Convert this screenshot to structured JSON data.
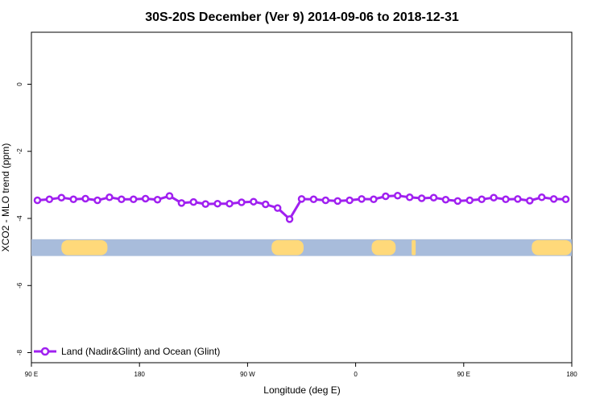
{
  "chart_data": {
    "type": "line",
    "title": "30S-20S December (Ver 9)   2014-09-06 to 2018-12-31",
    "xlabel": "Longitude (deg E)",
    "ylabel": "XCO2 - MLO trend (ppm)",
    "xlim": [
      -90,
      180
    ],
    "ylim": [
      -8.3,
      1.55
    ],
    "x_ticks": [
      {
        "value": -90,
        "label": "90 E"
      },
      {
        "value": -36,
        "label": "180"
      },
      {
        "value": 18,
        "label": "90 W"
      },
      {
        "value": 72,
        "label": "0"
      },
      {
        "value": 126,
        "label": "90 E"
      },
      {
        "value": 180,
        "label": "180"
      }
    ],
    "y_ticks": [
      {
        "value": 0,
        "label": "0"
      },
      {
        "value": -2,
        "label": "-2"
      },
      {
        "value": -4,
        "label": "-4"
      },
      {
        "value": -6,
        "label": "-6"
      },
      {
        "value": -8,
        "label": "-8"
      }
    ],
    "series": [
      {
        "name": "Land (Nadir&Glint) and Ocean (Glint)",
        "color": "#a020f0",
        "marker": "open-circle",
        "x": [
          -87,
          -81,
          -75,
          -69,
          -63,
          -57,
          -51,
          -45,
          -39,
          -33,
          -27,
          -21,
          -15,
          -9,
          -3,
          3,
          9,
          15,
          21,
          27,
          33,
          39,
          45,
          51,
          57,
          63,
          69,
          75,
          81,
          87,
          93,
          99,
          105,
          111,
          117,
          123,
          129,
          135,
          141,
          147,
          153,
          159,
          165,
          171,
          177
        ],
        "y": [
          -3.46,
          -3.43,
          -3.38,
          -3.43,
          -3.41,
          -3.46,
          -3.37,
          -3.43,
          -3.43,
          -3.41,
          -3.44,
          -3.33,
          -3.54,
          -3.51,
          -3.57,
          -3.56,
          -3.56,
          -3.52,
          -3.5,
          -3.58,
          -3.69,
          -4.02,
          -3.42,
          -3.43,
          -3.46,
          -3.48,
          -3.46,
          -3.42,
          -3.43,
          -3.34,
          -3.32,
          -3.37,
          -3.4,
          -3.38,
          -3.44,
          -3.48,
          -3.46,
          -3.43,
          -3.38,
          -3.43,
          -3.42,
          -3.47,
          -3.37,
          -3.42,
          -3.43
        ]
      }
    ],
    "land_strip": {
      "y_range": [
        -4.62,
        -5.12
      ],
      "ocean_color": "#a8bcdb",
      "land_color": "#ffd97a",
      "land_segments_lon": [
        [
          -75,
          -52
        ],
        [
          30,
          46
        ],
        [
          80,
          92
        ],
        [
          100,
          102
        ],
        [
          160,
          182
        ]
      ]
    },
    "legend": {
      "placement": "bottom-left"
    },
    "grid": false
  }
}
